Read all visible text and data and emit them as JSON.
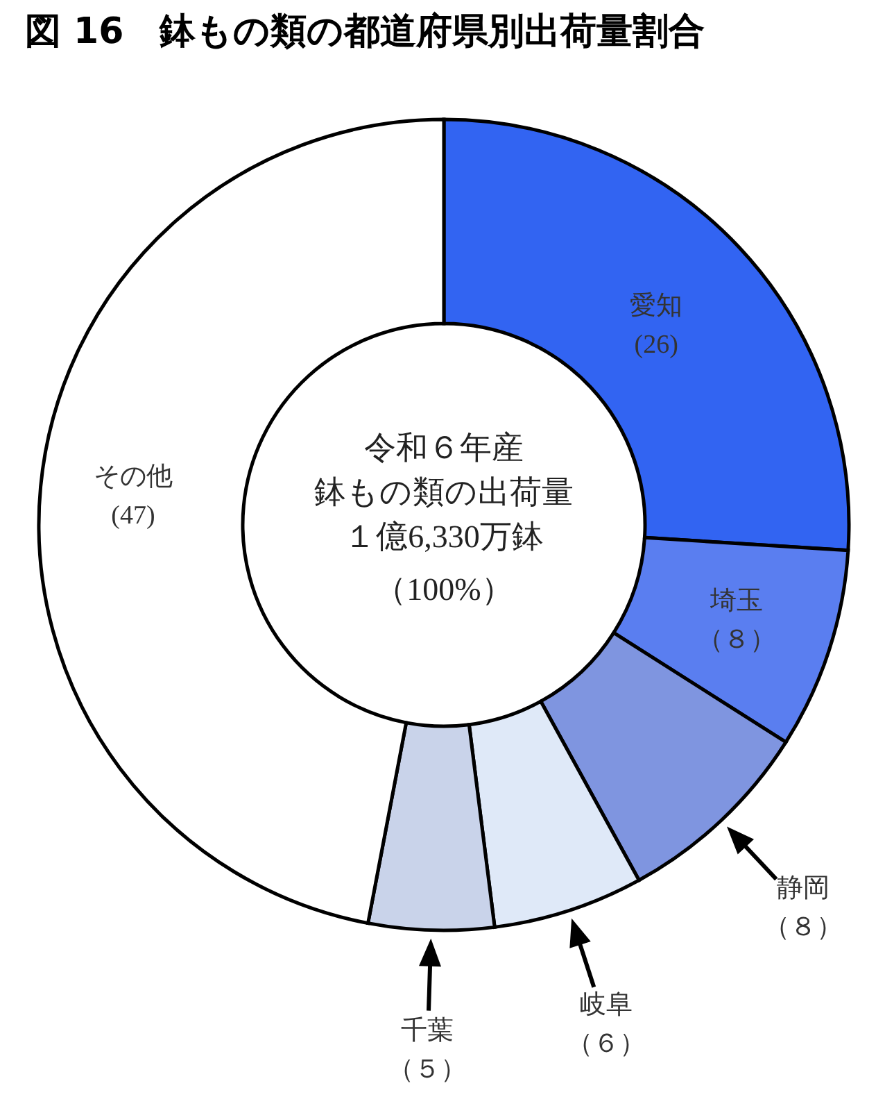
{
  "chart_data": {
    "type": "donut",
    "title": "図 16　鉢もの類の都道府県別出荷量割合",
    "categories": [
      "愛知",
      "埼玉",
      "静岡",
      "岐阜",
      "千葉",
      "その他"
    ],
    "values": [
      26,
      8,
      8,
      6,
      5,
      47
    ],
    "colors": [
      "#3264f2",
      "#5a7ef0",
      "#7f95e0",
      "#dfe9f8",
      "#c9d3ea",
      "#ffffff"
    ],
    "value_labels": [
      "(26)",
      "（８）",
      "（８）",
      "（６）",
      "（５）",
      "(47)"
    ],
    "annotations": [
      "令和６年産",
      "鉢もの類の出荷量",
      "１億6,330万鉢",
      "（100%）"
    ]
  }
}
